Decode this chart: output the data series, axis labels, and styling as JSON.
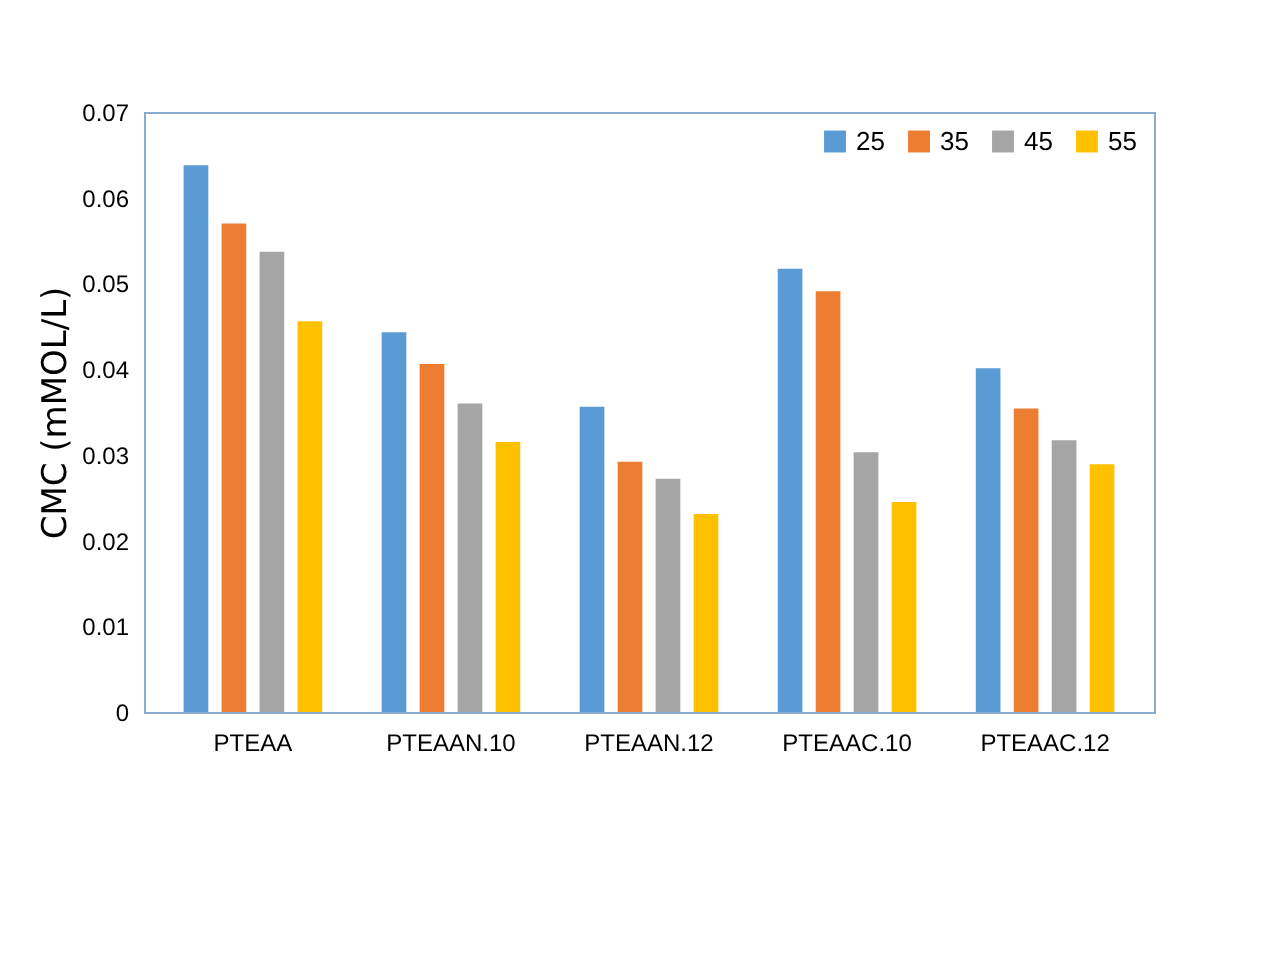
{
  "chart_data": {
    "type": "bar",
    "ylabel": "CMC (mMOL/L)",
    "categories": [
      "PTEAA",
      "PTEAAN.10",
      "PTEAAN.12",
      "PTEAAC.10",
      "PTEAAC.12"
    ],
    "series": [
      {
        "name": "25",
        "color": "#5b9bd5",
        "values": [
          0.0638,
          0.0443,
          0.0356,
          0.0517,
          0.0401
        ]
      },
      {
        "name": "35",
        "color": "#ed7d31",
        "values": [
          0.057,
          0.0406,
          0.0292,
          0.0491,
          0.0354
        ]
      },
      {
        "name": "45",
        "color": "#a5a5a5",
        "values": [
          0.0537,
          0.036,
          0.0272,
          0.0303,
          0.0317
        ]
      },
      {
        "name": "55",
        "color": "#ffc000",
        "values": [
          0.0456,
          0.0315,
          0.0231,
          0.0245,
          0.0289
        ]
      }
    ],
    "ylim": [
      0,
      0.07
    ],
    "yticks": [
      0,
      0.01,
      0.02,
      0.03,
      0.04,
      0.05,
      0.06,
      0.07
    ],
    "grid": false,
    "legend": "top right"
  }
}
